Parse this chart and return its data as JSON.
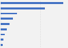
{
  "values": [
    39.4,
    27.8,
    10.3,
    7.8,
    5.5,
    3.8,
    2.5,
    1.8,
    1.2
  ],
  "bar_color": "#4472c4",
  "background_color": "#f2f2f2",
  "xlim": [
    0,
    42
  ],
  "grid_color": "#d9d9d9",
  "bar_height": 0.35
}
